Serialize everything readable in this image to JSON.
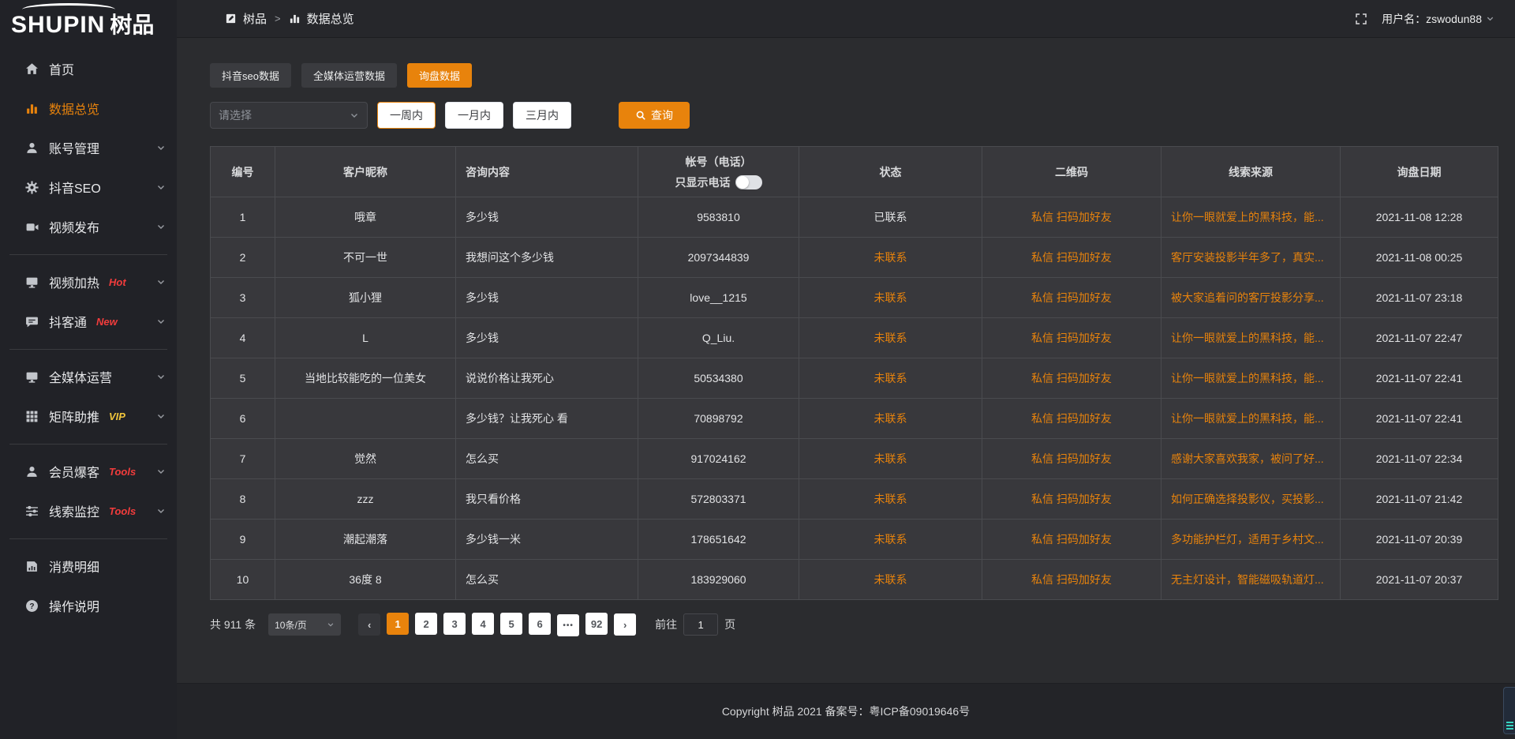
{
  "colors": {
    "accent": "#e8830c",
    "badge_red": "#f23c3c",
    "badge_gold": "#f0c53c"
  },
  "brand": {
    "logo_text": "SHUPIN",
    "logo_cn": "树品"
  },
  "header": {
    "breadcrumb_home": "树品",
    "breadcrumb_current": "数据总览",
    "separator": ">",
    "username": "用户名：zswodun88"
  },
  "sidebar": {
    "items": [
      {
        "key": "home",
        "label": "首页",
        "icon": "home"
      },
      {
        "key": "data-overview",
        "label": "数据总览",
        "icon": "chart-bar",
        "active": true
      },
      {
        "key": "account-management",
        "label": "账号管理",
        "icon": "user",
        "chevron": true
      },
      {
        "key": "douyin-seo",
        "label": "抖音SEO",
        "icon": "gear",
        "chevron": true
      },
      {
        "key": "video-publish",
        "label": "视频发布",
        "icon": "video",
        "chevron": true
      },
      {
        "divider": true
      },
      {
        "key": "video-heat",
        "label": "视频加热",
        "icon": "monitor",
        "badge": "Hot",
        "badge_color": "red",
        "chevron": true
      },
      {
        "key": "doketong",
        "label": "抖客通",
        "icon": "chat",
        "badge": "New",
        "badge_color": "red",
        "chevron": true
      },
      {
        "divider": true
      },
      {
        "key": "media-operation",
        "label": "全媒体运营",
        "icon": "monitor",
        "chevron": true
      },
      {
        "key": "matrix-boost",
        "label": "矩阵助推",
        "icon": "grid",
        "badge": "VIP",
        "badge_color": "gold",
        "chevron": true
      },
      {
        "divider": true
      },
      {
        "key": "member-baoke",
        "label": "会员爆客",
        "icon": "user",
        "badge": "Tools",
        "badge_color": "red",
        "chevron": true
      },
      {
        "key": "lead-monitor",
        "label": "线索监控",
        "icon": "sliders",
        "badge": "Tools",
        "badge_color": "red",
        "chevron": true
      },
      {
        "divider": true
      },
      {
        "key": "consumption-detail",
        "label": "消费明细",
        "icon": "receipt"
      },
      {
        "key": "operation-guide",
        "label": "操作说明",
        "icon": "question"
      }
    ]
  },
  "tabs": [
    {
      "key": "douyin-seo-data",
      "label": "抖音seo数据",
      "active": false
    },
    {
      "key": "media-operation-data",
      "label": "全媒体运营数据",
      "active": false
    },
    {
      "key": "inquiry-data",
      "label": "询盘数据",
      "active": true
    }
  ],
  "filters": {
    "select_placeholder": "请选择",
    "periods": [
      {
        "label": "一周内",
        "active": true
      },
      {
        "label": "一月内",
        "active": false
      },
      {
        "label": "三月内",
        "active": false
      }
    ],
    "query_label": "查询"
  },
  "table": {
    "headers": [
      "编号",
      "客户昵称",
      "咨询内容",
      "帐号（电话）",
      "状态",
      "二维码",
      "线索来源",
      "询盘日期"
    ],
    "phone_toggle_label": "只显示电话",
    "rows": [
      {
        "num": "1",
        "nick": "哦章",
        "content": "多少钱",
        "account": "9583810",
        "status": "已联系",
        "contacted": true,
        "qr": "私信 扫码加好友",
        "source": "让你一眼就爱上的黑科技，能...",
        "date": "2021-11-08 12:28"
      },
      {
        "num": "2",
        "nick": "不可一世",
        "content": "我想问这个多少钱",
        "account": "2097344839",
        "status": "未联系",
        "contacted": false,
        "qr": "私信 扫码加好友",
        "source": "客厅安装投影半年多了，真实...",
        "date": "2021-11-08 00:25"
      },
      {
        "num": "3",
        "nick": "狐小狸",
        "content": "多少钱",
        "account": "love__1215",
        "status": "未联系",
        "contacted": false,
        "qr": "私信 扫码加好友",
        "source": "被大家追着问的客厅投影分享...",
        "date": "2021-11-07 23:18"
      },
      {
        "num": "4",
        "nick": "L",
        "content": "多少钱",
        "account": "Q_Liu.",
        "status": "未联系",
        "contacted": false,
        "qr": "私信 扫码加好友",
        "source": "让你一眼就爱上的黑科技，能...",
        "date": "2021-11-07 22:47"
      },
      {
        "num": "5",
        "nick": "当地比较能吃的一位美女",
        "content": "说说价格让我死心",
        "account": "50534380",
        "status": "未联系",
        "contacted": false,
        "qr": "私信 扫码加好友",
        "source": "让你一眼就爱上的黑科技，能...",
        "date": "2021-11-07 22:41"
      },
      {
        "num": "6",
        "nick": "",
        "content": "多少钱？让我死心 看",
        "account": "70898792",
        "status": "未联系",
        "contacted": false,
        "qr": "私信 扫码加好友",
        "source": "让你一眼就爱上的黑科技，能...",
        "date": "2021-11-07 22:41"
      },
      {
        "num": "7",
        "nick": "觉然",
        "content": "怎么买",
        "account": "917024162",
        "status": "未联系",
        "contacted": false,
        "qr": "私信 扫码加好友",
        "source": "感谢大家喜欢我家，被问了好...",
        "date": "2021-11-07 22:34"
      },
      {
        "num": "8",
        "nick": "zzz",
        "content": "我只看价格",
        "account": "572803371",
        "status": "未联系",
        "contacted": false,
        "qr": "私信 扫码加好友",
        "source": "如何正确选择投影仪，买投影...",
        "date": "2021-11-07 21:42"
      },
      {
        "num": "9",
        "nick": "潮起潮落",
        "content": "多少钱一米",
        "account": "178651642",
        "status": "未联系",
        "contacted": false,
        "qr": "私信 扫码加好友",
        "source": "多功能护栏灯，适用于乡村文...",
        "date": "2021-11-07 20:39"
      },
      {
        "num": "10",
        "nick": "36度 8",
        "content": "怎么买",
        "account": "183929060",
        "status": "未联系",
        "contacted": false,
        "qr": "私信 扫码加好友",
        "source": "无主灯设计，智能磁吸轨道灯...",
        "date": "2021-11-07 20:37"
      }
    ]
  },
  "pagination": {
    "total_label": "共 911 条",
    "page_size": "10条/页",
    "pages": [
      {
        "label": "1",
        "active": true
      },
      {
        "label": "2"
      },
      {
        "label": "3"
      },
      {
        "label": "4"
      },
      {
        "label": "5"
      },
      {
        "label": "6"
      },
      {
        "label": "•••",
        "ellipsis": true
      },
      {
        "label": "92"
      }
    ],
    "goto_label": "前往",
    "goto_value": "1",
    "page_unit": "页"
  },
  "footer": {
    "copyright": "Copyright 树品 2021 备案号：粤ICP备09019646号"
  }
}
